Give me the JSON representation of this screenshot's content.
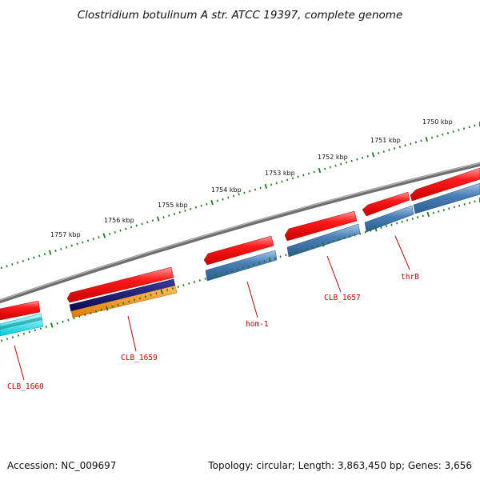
{
  "title": "Clostridium botulinum A str. ATCC 19397, complete genome",
  "footer": {
    "accession": "Accession: NC_009697",
    "summary": "Topology: circular; Length: 3,863,450 bp; Genes: 3,656"
  },
  "ruler": {
    "unit": "kbp",
    "labels": [
      "1750 kbp",
      "1751 kbp",
      "1752 kbp",
      "1753 kbp",
      "1754 kbp",
      "1755 kbp",
      "1756 kbp",
      "1757 kbp"
    ]
  },
  "genes": [
    {
      "label": "thrB",
      "strand": "reverse"
    },
    {
      "label": "CLB_1657",
      "strand": "reverse"
    },
    {
      "label": "hom-1",
      "strand": "reverse"
    },
    {
      "label": "CLB_1659",
      "strand": "reverse"
    },
    {
      "label": "CLB_1660",
      "strand": "reverse"
    }
  ],
  "colors": {
    "backbone": "#7a7a7a",
    "cds_forward": "#ee0000",
    "cds_reverse": "#4a7fb5",
    "cds_navy": "#10107a",
    "cds_orange": "#ff8c00",
    "cds_cyan": "#00e5f0",
    "tick": "#1a7a1a",
    "label": "#cc0000"
  }
}
